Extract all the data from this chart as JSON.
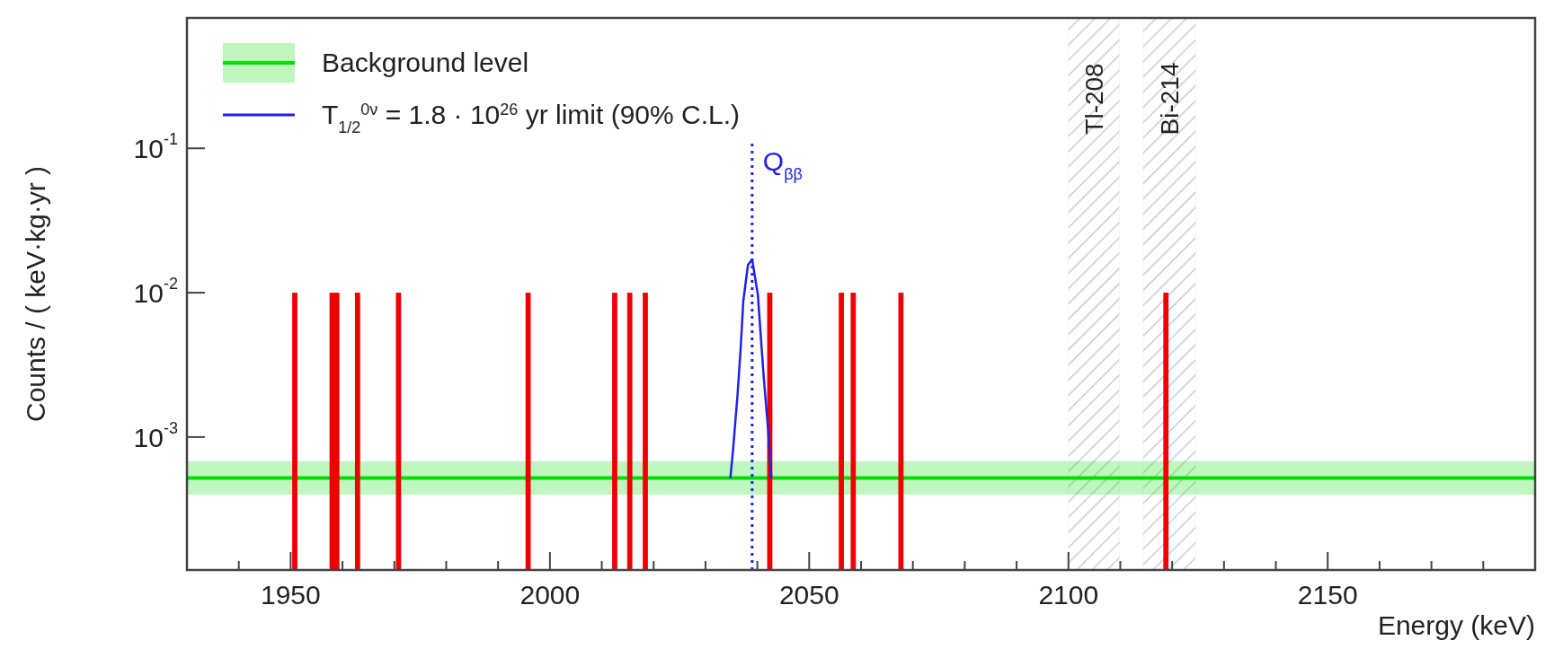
{
  "chart_data": {
    "type": "bar",
    "xlabel": "Energy (keV)",
    "ylabel": "Counts / ( keV·kg·yr )",
    "xlim": [
      1930,
      2190
    ],
    "ylim": [
      0.00012,
      0.8
    ],
    "log": "y",
    "grid": false,
    "legend": "top left",
    "xticks": [
      {
        "value": 1940,
        "label": null
      },
      1950,
      {
        "value": 1960,
        "label": null
      },
      {
        "value": 1970,
        "label": null
      },
      {
        "value": 1980,
        "label": null
      },
      {
        "value": 1990,
        "label": null
      },
      2000,
      {
        "value": 2010,
        "label": null
      },
      {
        "value": 2020,
        "label": null
      },
      {
        "value": 2030,
        "label": null
      },
      {
        "value": 2040,
        "label": null
      },
      2050,
      {
        "value": 2060,
        "label": null
      },
      {
        "value": 2070,
        "label": null
      },
      {
        "value": 2080,
        "label": null
      },
      {
        "value": 2090,
        "label": null
      },
      2100,
      {
        "value": 2110,
        "label": null
      },
      {
        "value": 2120,
        "label": null
      },
      {
        "value": 2130,
        "label": null
      },
      {
        "value": 2140,
        "label": null
      },
      2150,
      {
        "value": 2160,
        "label": null
      },
      {
        "value": 2170,
        "label": null
      },
      {
        "value": 2180,
        "label": null
      }
    ],
    "yticks": [
      {
        "value": 0.001,
        "label": "10$^{-3}$"
      },
      {
        "value": 0.01,
        "label": "10$^{-2}$"
      },
      {
        "value": 0.1,
        "label": "10$^{-1}$"
      }
    ],
    "series": [
      {
        "type": "line",
        "name": "Background level",
        "color": "#00e000",
        "x": [
          1930,
          2190
        ],
        "values": [
          0.00052,
          0.00052
        ],
        "lower": [
          0.0004,
          0.0004
        ],
        "upper": [
          0.00068,
          0.00068
        ]
      },
      {
        "color": "#ee0000",
        "x": [
          1950.8,
          1958,
          1958.9,
          1962.9,
          1970.8,
          1995.8,
          2012.5,
          2015.4,
          2018.4,
          2042.4,
          2056.2,
          2058.5,
          2067.7,
          2118.8
        ],
        "values": [
          0.01,
          0.01,
          0.01,
          0.01,
          0.01,
          0.01,
          0.01,
          0.01,
          0.01,
          0.01,
          0.01,
          0.01,
          0.01,
          0.01
        ]
      },
      {
        "type": "line",
        "name": "T$_{1/2}$$^{0ν}$ = 1.8 · 10$^{26}$ yr limit (90% C.L.)",
        "color": "#2020ee",
        "x": [
          2034.8,
          2035.3,
          2036.2,
          2036.8,
          2037.3,
          2038.2,
          2039,
          2040.1,
          2041.2,
          2042.1,
          2042.7
        ],
        "values": [
          0.00052,
          0.0008,
          0.002,
          0.0042,
          0.0088,
          0.0156,
          0.017,
          0.0097,
          0.0027,
          0.0011,
          0.00052
        ]
      }
    ],
    "ref_lines": [
      {
        "axis": "x",
        "value": 2039,
        "label": "Q$_{ββ}$",
        "color": "#2020ee",
        "line_style": "dotted"
      }
    ],
    "bands": [
      {
        "axis": "x",
        "from": 2100,
        "to": 2109.8,
        "label": "Tl-208",
        "color": "#aaaaaa"
      },
      {
        "axis": "x",
        "from": 2114.4,
        "to": 2124.5,
        "label": "Bi-214",
        "color": "#aaaaaa"
      }
    ]
  }
}
